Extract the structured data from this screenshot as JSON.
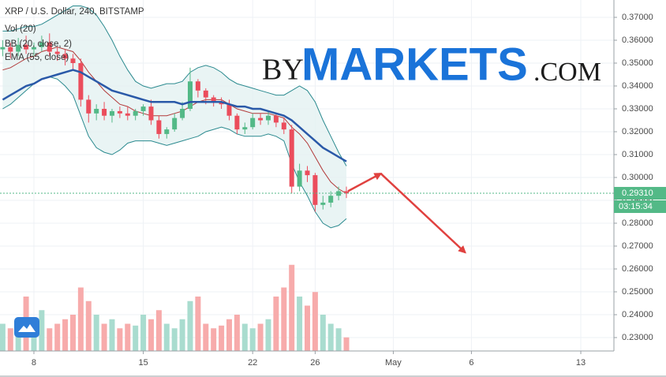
{
  "chart_data": {
    "type": "candlestick",
    "title": "XRP / U.S. Dollar, 240, BITSTAMP",
    "legend": [
      "Vol (20)",
      "BB (20, close, 2)",
      "EMA (55, close)"
    ],
    "watermark": {
      "prefix": "BY",
      "brand": "MARKETS",
      "suffix": ".COM"
    },
    "x": [
      6,
      6.5,
      7,
      7.5,
      8,
      8.5,
      9,
      9.5,
      10,
      10.5,
      11,
      11.5,
      12,
      12.5,
      13,
      13.5,
      14,
      14.5,
      15,
      15.5,
      16,
      16.5,
      17,
      17.5,
      18,
      18.5,
      19,
      19.5,
      20,
      20.5,
      21,
      21.5,
      22,
      22.5,
      23,
      23.5,
      24,
      24.5,
      25,
      25.5,
      26,
      26.5,
      27,
      27.5,
      28
    ],
    "open": [
      0.356,
      0.357,
      0.355,
      0.358,
      0.356,
      0.357,
      0.359,
      0.355,
      0.354,
      0.352,
      0.35,
      0.334,
      0.328,
      0.33,
      0.327,
      0.329,
      0.328,
      0.327,
      0.329,
      0.331,
      0.325,
      0.319,
      0.321,
      0.326,
      0.33,
      0.342,
      0.338,
      0.335,
      0.333,
      0.332,
      0.327,
      0.321,
      0.322,
      0.326,
      0.325,
      0.327,
      0.324,
      0.321,
      0.296,
      0.303,
      0.301,
      0.288,
      0.289,
      0.292,
      0.294
    ],
    "high": [
      0.36,
      0.359,
      0.361,
      0.362,
      0.359,
      0.362,
      0.363,
      0.357,
      0.356,
      0.354,
      0.352,
      0.336,
      0.332,
      0.333,
      0.33,
      0.331,
      0.331,
      0.33,
      0.332,
      0.334,
      0.327,
      0.322,
      0.328,
      0.333,
      0.348,
      0.343,
      0.339,
      0.336,
      0.335,
      0.334,
      0.328,
      0.324,
      0.328,
      0.328,
      0.329,
      0.328,
      0.326,
      0.323,
      0.306,
      0.305,
      0.302,
      0.292,
      0.294,
      0.296,
      0.296
    ],
    "low": [
      0.353,
      0.352,
      0.353,
      0.354,
      0.353,
      0.355,
      0.353,
      0.351,
      0.349,
      0.347,
      0.331,
      0.324,
      0.325,
      0.325,
      0.324,
      0.326,
      0.325,
      0.325,
      0.327,
      0.323,
      0.317,
      0.317,
      0.32,
      0.325,
      0.329,
      0.335,
      0.332,
      0.331,
      0.33,
      0.325,
      0.319,
      0.319,
      0.321,
      0.323,
      0.323,
      0.322,
      0.319,
      0.293,
      0.294,
      0.298,
      0.285,
      0.286,
      0.287,
      0.29,
      0.291
    ],
    "close": [
      0.357,
      0.355,
      0.358,
      0.356,
      0.357,
      0.359,
      0.355,
      0.354,
      0.352,
      0.35,
      0.334,
      0.328,
      0.33,
      0.327,
      0.329,
      0.328,
      0.327,
      0.329,
      0.331,
      0.325,
      0.319,
      0.321,
      0.326,
      0.33,
      0.342,
      0.338,
      0.335,
      0.333,
      0.332,
      0.327,
      0.321,
      0.322,
      0.326,
      0.325,
      0.327,
      0.324,
      0.321,
      0.296,
      0.303,
      0.301,
      0.288,
      0.289,
      0.292,
      0.294,
      0.293
    ],
    "volume": [
      30,
      25,
      35,
      60,
      20,
      45,
      25,
      30,
      35,
      40,
      70,
      55,
      40,
      30,
      35,
      25,
      30,
      28,
      40,
      35,
      45,
      30,
      25,
      35,
      55,
      60,
      30,
      25,
      28,
      35,
      40,
      30,
      25,
      30,
      35,
      60,
      70,
      95,
      60,
      50,
      65,
      40,
      30,
      25,
      15
    ],
    "volume_ylim": [
      0,
      100
    ],
    "bb_upper": [
      0.364,
      0.364,
      0.365,
      0.366,
      0.366,
      0.367,
      0.369,
      0.371,
      0.373,
      0.375,
      0.375,
      0.374,
      0.371,
      0.366,
      0.36,
      0.353,
      0.347,
      0.342,
      0.34,
      0.339,
      0.34,
      0.341,
      0.341,
      0.342,
      0.346,
      0.348,
      0.349,
      0.348,
      0.346,
      0.343,
      0.341,
      0.34,
      0.339,
      0.338,
      0.337,
      0.336,
      0.336,
      0.338,
      0.34,
      0.338,
      0.333,
      0.325,
      0.318,
      0.311,
      0.305
    ],
    "bb_basis": [
      0.347,
      0.348,
      0.35,
      0.352,
      0.353,
      0.355,
      0.356,
      0.357,
      0.356,
      0.355,
      0.351,
      0.346,
      0.342,
      0.338,
      0.335,
      0.332,
      0.331,
      0.329,
      0.328,
      0.327,
      0.327,
      0.327,
      0.328,
      0.329,
      0.331,
      0.333,
      0.334,
      0.334,
      0.334,
      0.332,
      0.33,
      0.329,
      0.328,
      0.328,
      0.328,
      0.327,
      0.326,
      0.322,
      0.319,
      0.315,
      0.309,
      0.303,
      0.298,
      0.295,
      0.293
    ],
    "bb_lower": [
      0.33,
      0.332,
      0.335,
      0.338,
      0.341,
      0.343,
      0.344,
      0.343,
      0.34,
      0.336,
      0.327,
      0.318,
      0.313,
      0.311,
      0.31,
      0.312,
      0.315,
      0.316,
      0.316,
      0.316,
      0.315,
      0.314,
      0.315,
      0.316,
      0.317,
      0.318,
      0.32,
      0.321,
      0.322,
      0.321,
      0.319,
      0.318,
      0.318,
      0.318,
      0.319,
      0.318,
      0.316,
      0.306,
      0.298,
      0.292,
      0.285,
      0.28,
      0.278,
      0.279,
      0.282
    ],
    "ema": [
      0.334,
      0.336,
      0.338,
      0.34,
      0.341,
      0.343,
      0.344,
      0.345,
      0.346,
      0.347,
      0.346,
      0.344,
      0.342,
      0.34,
      0.338,
      0.337,
      0.336,
      0.335,
      0.334,
      0.333,
      0.333,
      0.333,
      0.333,
      0.332,
      0.333,
      0.333,
      0.333,
      0.333,
      0.333,
      0.332,
      0.331,
      0.331,
      0.33,
      0.33,
      0.329,
      0.328,
      0.327,
      0.325,
      0.322,
      0.319,
      0.316,
      0.313,
      0.311,
      0.309,
      0.307
    ],
    "projection": {
      "x": [
        28.1,
        30.2,
        35.6
      ],
      "values": [
        0.294,
        0.3017,
        0.2672
      ],
      "color": "#e0413f"
    },
    "last_price": {
      "value": 0.2931,
      "label": "0.29310"
    },
    "countdown": "03:15:34",
    "up_color": "#53b987",
    "down_color": "#eb4d5c",
    "up_volume_color": "#a9dccf",
    "down_volume_color": "#f7abab",
    "bb_color": "#2b8a8f",
    "bb_fill": "#e4f1f1",
    "basis_color": "#b23a3a",
    "ema_color": "#2a59a8",
    "xlim": [
      5.83,
      45.12
    ],
    "xticks": [
      8,
      15,
      22,
      26,
      {
        "value": 31,
        "label": "May"
      },
      {
        "value": 36,
        "label": "6"
      },
      {
        "value": 43,
        "label": "13"
      }
    ],
    "ylim": [
      0.22414,
      0.37759
    ],
    "yticks": [
      {
        "value": 0.23,
        "label": "0.23000"
      },
      {
        "value": 0.24,
        "label": "0.24000"
      },
      {
        "value": 0.25,
        "label": "0.25000"
      },
      {
        "value": 0.26,
        "label": "0.26000"
      },
      {
        "value": 0.27,
        "label": "0.27000"
      },
      {
        "value": 0.28,
        "label": "0.28000"
      },
      {
        "value": 0.29,
        "label": "0.29000"
      },
      {
        "value": 0.3,
        "label": "0.30000"
      },
      {
        "value": 0.31,
        "label": "0.31000"
      },
      {
        "value": 0.32,
        "label": "0.32000"
      },
      {
        "value": 0.33,
        "label": "0.33000"
      },
      {
        "value": 0.34,
        "label": "0.34000"
      },
      {
        "value": 0.35,
        "label": "0.35000"
      },
      {
        "value": 0.36,
        "label": "0.36000"
      },
      {
        "value": 0.37,
        "label": "0.37000"
      }
    ],
    "grid": true
  }
}
